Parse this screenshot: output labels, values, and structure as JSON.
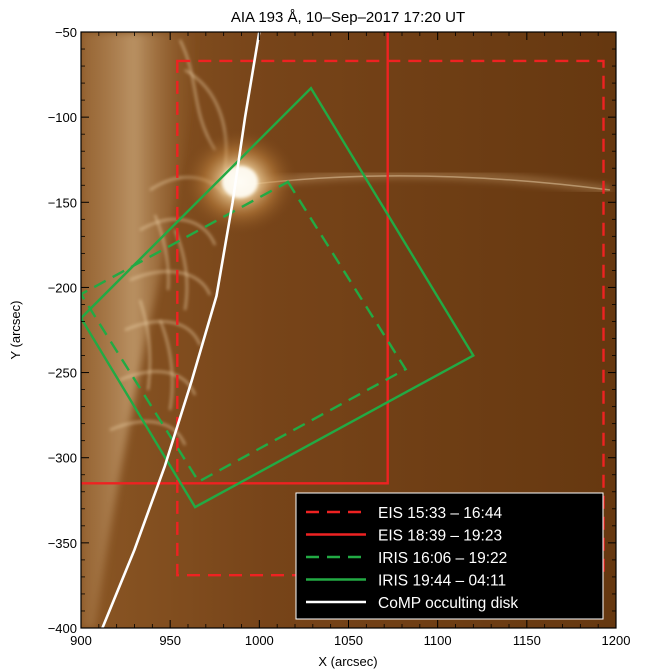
{
  "title": "AIA 193 Å, 10–Sep–2017 17:20 UT",
  "axes": {
    "xlabel": "X (arcsec)",
    "ylabel": "Y (arcsec)",
    "xlim": [
      900,
      1200
    ],
    "ylim": [
      -400,
      -50
    ],
    "xticks": [
      900,
      950,
      1000,
      1050,
      1100,
      1150,
      1200
    ],
    "xtick_labels": [
      "900",
      "950",
      "1000",
      "1050",
      "1100",
      "1150",
      "1200"
    ],
    "yticks": [
      -400,
      -350,
      -300,
      -250,
      -200,
      -150,
      -100,
      -50
    ],
    "ytick_labels": [
      "−400",
      "−350",
      "−300",
      "−250",
      "−200",
      "−150",
      "−100",
      "−50"
    ]
  },
  "colors": {
    "eis": "#ee2222",
    "iris": "#22aa44",
    "comp": "#ffffff",
    "background": "#6e3d12"
  },
  "overlays": [
    {
      "label": "EIS 15:33 – 16:44",
      "color": "eis",
      "style": "dashed",
      "points": [
        [
          954,
          -67
        ],
        [
          1193,
          -67
        ],
        [
          1193,
          -369
        ],
        [
          954,
          -369
        ]
      ]
    },
    {
      "label": "EIS 18:39 – 19:23",
      "color": "eis",
      "style": "solid",
      "points": [
        [
          900,
          -315
        ],
        [
          1072,
          -315
        ],
        [
          1072,
          -50
        ]
      ]
    },
    {
      "label": "IRIS 16:06 – 19:22",
      "color": "iris",
      "style": "dashed",
      "points": [
        [
          1016,
          -138
        ],
        [
          1082,
          -248
        ],
        [
          966,
          -314
        ],
        [
          900,
          -204
        ]
      ]
    },
    {
      "label": "IRIS 19:44 – 04:11",
      "color": "iris",
      "style": "solid",
      "points": [
        [
          1029,
          -83
        ],
        [
          1120,
          -240
        ],
        [
          964,
          -329
        ],
        [
          900,
          -218
        ]
      ]
    },
    {
      "label": "CoMP occulting disk",
      "color": "comp",
      "style": "solid",
      "points": [
        [
          912,
          -400
        ],
        [
          930,
          -354
        ],
        [
          947,
          -305
        ],
        [
          962,
          -255
        ],
        [
          976,
          -205
        ],
        [
          985,
          -150
        ],
        [
          992,
          -100
        ],
        [
          1000,
          -50
        ]
      ]
    }
  ]
}
